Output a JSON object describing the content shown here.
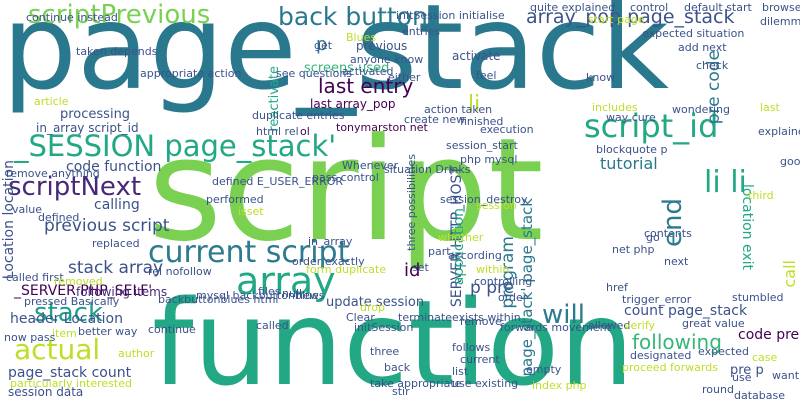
{
  "colors": {
    "background": "#ffffff",
    "palette": [
      "#2c7b8e",
      "#7ad151",
      "#22a884",
      "#2a788e",
      "#414487",
      "#3b528b",
      "#35b779",
      "#bddf26",
      "#440154",
      "#482878",
      "#1f9e89"
    ]
  },
  "words": [
    {
      "text": "page_stack",
      "color": "#2a788e"
    },
    {
      "text": "script",
      "color": "#7ad151"
    },
    {
      "text": "function",
      "color": "#22a884"
    },
    {
      "text": "scriptPrevious",
      "color": "#7ad151"
    },
    {
      "text": "back button",
      "color": "#2a788e"
    },
    {
      "text": "_SESSION page_stack'",
      "color": "#22a884"
    },
    {
      "text": "script_id",
      "color": "#22a884"
    },
    {
      "text": "scriptNext",
      "color": "#482878"
    },
    {
      "text": "current script",
      "color": "#2c7b8e"
    },
    {
      "text": "array",
      "color": "#22a884"
    },
    {
      "text": "actual",
      "color": "#bddf26"
    },
    {
      "text": "will",
      "color": "#2c7b8e"
    },
    {
      "text": "li li",
      "color": "#22a884"
    },
    {
      "text": "end",
      "color": "#2c7b8e"
    },
    {
      "text": "stack",
      "color": "#1f9e89"
    },
    {
      "text": "array_pop page_stack",
      "color": "#3b528b"
    },
    {
      "text": "last entry",
      "color": "#440154"
    },
    {
      "text": "last array_pop",
      "color": "#440154"
    },
    {
      "text": "previous script",
      "color": "#3b528b"
    },
    {
      "text": "stack array",
      "color": "#3b528b"
    },
    {
      "text": "header Location",
      "color": "#3b528b"
    },
    {
      "text": "page_stack count",
      "color": "#3b528b"
    },
    {
      "text": "session data",
      "color": "#3b528b"
    },
    {
      "text": "code function",
      "color": "#3b528b"
    },
    {
      "text": "Location location",
      "color": "#3b528b"
    },
    {
      "text": "processing",
      "color": "#3b528b"
    },
    {
      "text": "in_array script_id",
      "color": "#3b528b"
    },
    {
      "text": "_SERVER PHP_SELF'",
      "color": "#440154"
    },
    {
      "text": "following items",
      "color": "#482878"
    },
    {
      "text": "p pre",
      "color": "#3b528b"
    },
    {
      "text": "count page_stack",
      "color": "#3b528b"
    },
    {
      "text": "code pre",
      "color": "#440154"
    },
    {
      "text": "pre p",
      "color": "#3b528b"
    },
    {
      "text": "following",
      "color": "#35b779"
    },
    {
      "text": "location exit",
      "color": "#22a884"
    },
    {
      "text": "pre code",
      "color": "#2a788e"
    },
    {
      "text": "tutorial",
      "color": "#2a788e"
    },
    {
      "text": "program",
      "color": "#2a788e"
    },
    {
      "text": "SERVER HTTP_HOST",
      "color": "#3b528b"
    },
    {
      "text": "page_stack' page_stack",
      "color": "#2a788e"
    },
    {
      "text": "update session",
      "color": "#3b528b"
    },
    {
      "text": "calling",
      "color": "#3b528b"
    },
    {
      "text": "li",
      "color": "#bddf26"
    },
    {
      "text": "p",
      "color": "#2a788e"
    },
    {
      "text": "call",
      "color": "#bddf26"
    },
    {
      "text": "screens used",
      "color": "#35b779"
    },
    {
      "text": "previous",
      "color": "#3b528b"
    },
    {
      "text": "activate",
      "color": "#3b528b"
    },
    {
      "text": "application",
      "color": "#22a884"
    },
    {
      "text": "reactivate",
      "color": "#22a884"
    },
    {
      "text": "id",
      "color": "#440154"
    },
    {
      "text": "order",
      "color": "#3b528b"
    },
    {
      "text": "terminate",
      "color": "#3b528b"
    },
    {
      "text": "remove",
      "color": "#3b528b"
    },
    {
      "text": "current",
      "color": "#3b528b"
    },
    {
      "text": "list",
      "color": "#3b528b"
    },
    {
      "text": "three",
      "color": "#3b528b"
    },
    {
      "text": "back",
      "color": "#3b528b"
    },
    {
      "text": "called",
      "color": "#3b528b"
    },
    {
      "text": "expected",
      "color": "#3b528b"
    },
    {
      "text": "case",
      "color": "#bddf26"
    },
    {
      "text": "last",
      "color": "#bddf26"
    },
    {
      "text": "tonymarston net",
      "color": "#440154"
    },
    {
      "text": "ol",
      "color": "#440154"
    },
    {
      "text": "feel",
      "color": "#3b528b"
    },
    {
      "text": "know",
      "color": "#3b528b"
    },
    {
      "text": "entries",
      "color": "#3b528b"
    },
    {
      "text": "anyone know",
      "color": "#3b528b"
    },
    {
      "text": "Blues",
      "color": "#bddf26"
    },
    {
      "text": "blockquote p",
      "color": "#3b528b"
    },
    {
      "text": "execution",
      "color": "#3b528b"
    },
    {
      "text": "finished",
      "color": "#3b528b"
    },
    {
      "text": "rel nofollow",
      "color": "#3b528b"
    },
    {
      "text": "replaced",
      "color": "#3b528b"
    },
    {
      "text": "defined",
      "color": "#3b528b"
    },
    {
      "text": "value",
      "color": "#3b528b"
    },
    {
      "text": "performed",
      "color": "#3b528b"
    },
    {
      "text": "isset",
      "color": "#bddf26"
    },
    {
      "text": "in_array",
      "color": "#3b528b"
    },
    {
      "text": "net php",
      "color": "#3b528b"
    },
    {
      "text": "contents",
      "color": "#3b528b"
    },
    {
      "text": "next",
      "color": "#3b528b"
    },
    {
      "text": "href",
      "color": "#3b528b"
    },
    {
      "text": "trigger_error",
      "color": "#3b528b"
    },
    {
      "text": "allowed",
      "color": "#3b528b"
    },
    {
      "text": "verify",
      "color": "#bddf26"
    },
    {
      "text": "great value",
      "color": "#3b528b"
    },
    {
      "text": "stumbled",
      "color": "#3b528b"
    },
    {
      "text": "designated",
      "color": "#3b528b"
    },
    {
      "text": "round",
      "color": "#3b528b"
    },
    {
      "text": "database",
      "color": "#3b528b"
    },
    {
      "text": "use",
      "color": "#3b528b"
    },
    {
      "text": "want",
      "color": "#3b528b"
    },
    {
      "text": "go",
      "color": "#3b528b"
    },
    {
      "text": "third",
      "color": "#bddf26"
    },
    {
      "text": "way cure",
      "color": "#3b528b"
    },
    {
      "text": "includes",
      "color": "#bddf26"
    },
    {
      "text": "wondering",
      "color": "#3b528b"
    },
    {
      "text": "check",
      "color": "#3b528b"
    },
    {
      "text": "html rel",
      "color": "#3b528b"
    },
    {
      "text": "new",
      "color": "#3b528b"
    },
    {
      "text": "get",
      "color": "#3b528b"
    },
    {
      "text": "files",
      "color": "#3b528b"
    },
    {
      "text": "backbuttonblues html",
      "color": "#3b528b"
    },
    {
      "text": "called first",
      "color": "#3b528b"
    },
    {
      "text": "removed",
      "color": "#bddf26"
    },
    {
      "text": "item",
      "color": "#bddf26"
    },
    {
      "text": "better way",
      "color": "#3b528b"
    },
    {
      "text": "author",
      "color": "#bddf26"
    },
    {
      "text": "continue",
      "color": "#3b528b"
    },
    {
      "text": "initSession",
      "color": "#3b528b"
    },
    {
      "text": "Clear",
      "color": "#3b528b"
    },
    {
      "text": "drop",
      "color": "#bddf26"
    },
    {
      "text": "follows",
      "color": "#3b528b"
    },
    {
      "text": "stir",
      "color": "#3b528b"
    },
    {
      "text": "empty",
      "color": "#3b528b"
    },
    {
      "text": "within",
      "color": "#bddf26"
    },
    {
      "text": "controlling",
      "color": "#3b528b"
    },
    {
      "text": "according",
      "color": "#3b528b"
    },
    {
      "text": "set",
      "color": "#3b528b"
    },
    {
      "text": "part",
      "color": "#3b528b"
    },
    {
      "text": "whether",
      "color": "#bddf26"
    },
    {
      "text": "php mysql",
      "color": "#3b528b"
    },
    {
      "text": "session",
      "color": "#bddf26"
    },
    {
      "text": "Whenever",
      "color": "#3b528b"
    },
    {
      "text": "either",
      "color": "#3b528b"
    },
    {
      "text": "activated",
      "color": "#3b528b"
    },
    {
      "text": "quite explained",
      "color": "#3b528b"
    },
    {
      "text": "control",
      "color": "#3b528b"
    },
    {
      "text": "browser",
      "color": "#3b528b"
    },
    {
      "text": "dilemma",
      "color": "#3b528b"
    },
    {
      "text": "article",
      "color": "#bddf26"
    },
    {
      "text": "null",
      "color": "#3b528b"
    },
    {
      "text": "mysql backbuttonblues",
      "color": "#3b528b"
    },
    {
      "text": "explained properly",
      "color": "#3b528b"
    },
    {
      "text": "good conversation",
      "color": "#3b528b"
    },
    {
      "text": "initSession initialise",
      "color": "#3b528b"
    },
    {
      "text": "continue instead",
      "color": "#3b528b"
    },
    {
      "text": "taken depends",
      "color": "#3b528b"
    },
    {
      "text": "appropriate action",
      "color": "#3b528b"
    },
    {
      "text": "start page",
      "color": "#bddf26"
    },
    {
      "text": "default start",
      "color": "#3b528b"
    },
    {
      "text": "duplicate entries",
      "color": "#3b528b"
    },
    {
      "text": "action taken",
      "color": "#3b528b"
    },
    {
      "text": "create new",
      "color": "#3b528b"
    },
    {
      "text": "see questions",
      "color": "#3b528b"
    },
    {
      "text": "pass control",
      "color": "#3b528b"
    },
    {
      "text": "order exactly",
      "color": "#3b528b"
    },
    {
      "text": "form duplicate",
      "color": "#bddf26"
    },
    {
      "text": "remove anything",
      "color": "#3b528b"
    },
    {
      "text": "pressed Basically",
      "color": "#3b528b"
    },
    {
      "text": "now pass",
      "color": "#3b528b"
    },
    {
      "text": "particularly interested",
      "color": "#bddf26"
    },
    {
      "text": "take appropriate",
      "color": "#3b528b"
    },
    {
      "text": "use existing",
      "color": "#3b528b"
    },
    {
      "text": "index php",
      "color": "#bddf26"
    },
    {
      "text": "exists within",
      "color": "#3b528b"
    },
    {
      "text": "situation Drinks",
      "color": "#3b528b"
    },
    {
      "text": "three possibilities",
      "color": "#3b528b"
    },
    {
      "text": "session_destroy",
      "color": "#3b528b"
    },
    {
      "text": "forwards movement",
      "color": "#3b528b"
    },
    {
      "text": "proceed forwards",
      "color": "#bddf26"
    },
    {
      "text": "add next",
      "color": "#3b528b"
    },
    {
      "text": "expected situation",
      "color": "#3b528b"
    },
    {
      "text": "defined E_USER_ERROR",
      "color": "#3b528b"
    },
    {
      "text": "session_start",
      "color": "#3b528b"
    }
  ]
}
